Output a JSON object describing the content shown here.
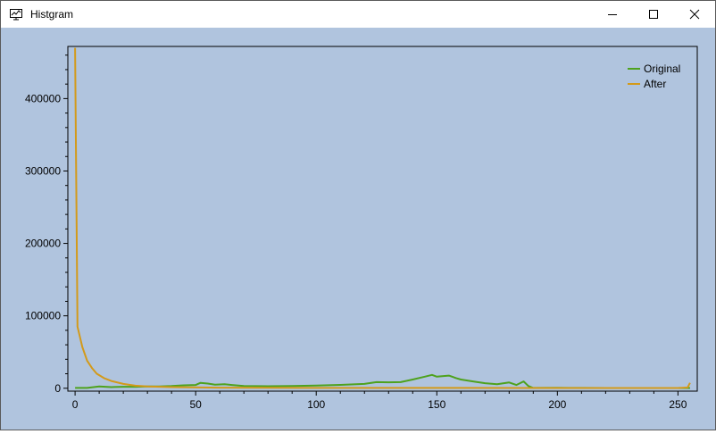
{
  "window": {
    "title": "Histgram",
    "icon": "chart-window-icon",
    "controls": [
      "minimize-icon",
      "maximize-icon",
      "close-icon"
    ]
  },
  "colors": {
    "background": "#b0c4de",
    "original": "#4ea21d",
    "after": "#d39a1a",
    "axis": "#000000"
  },
  "chart_data": {
    "type": "line",
    "title": "",
    "xlabel": "",
    "ylabel": "",
    "xlim": [
      -3,
      258
    ],
    "ylim": [
      -4000,
      472000
    ],
    "xticks": [
      0,
      50,
      100,
      150,
      200,
      250
    ],
    "yticks": [
      0,
      100000,
      200000,
      300000,
      400000
    ],
    "ytick_labels": [
      "0",
      "100000",
      "200000",
      "300000",
      "400000"
    ],
    "legend": {
      "position": "top-right",
      "entries": [
        "Original",
        "After"
      ]
    },
    "grid": false,
    "series": [
      {
        "name": "Original",
        "x": [
          0,
          5,
          10,
          15,
          20,
          25,
          30,
          35,
          40,
          45,
          50,
          52,
          55,
          58,
          62,
          65,
          70,
          80,
          90,
          100,
          110,
          120,
          125,
          130,
          135,
          140,
          145,
          148,
          150,
          155,
          158,
          160,
          165,
          170,
          175,
          180,
          183,
          186,
          188,
          190,
          200,
          210,
          220,
          230,
          240,
          250,
          255
        ],
        "y": [
          500,
          500,
          2500,
          1500,
          2000,
          2000,
          2500,
          2500,
          3000,
          4000,
          4500,
          7500,
          6500,
          5000,
          5500,
          4500,
          3000,
          2800,
          3200,
          3800,
          4600,
          6000,
          8500,
          8200,
          8500,
          12000,
          16000,
          18500,
          16000,
          17500,
          14000,
          12000,
          9500,
          7000,
          5500,
          8000,
          4500,
          9500,
          3000,
          500,
          600,
          400,
          300,
          300,
          300,
          300,
          300
        ]
      },
      {
        "name": "After",
        "x": [
          0,
          1,
          3,
          5,
          7,
          9,
          12,
          15,
          20,
          25,
          30,
          40,
          60,
          100,
          150,
          200,
          250,
          254,
          255
        ],
        "y": [
          470000,
          85000,
          57000,
          38000,
          28000,
          20000,
          14000,
          10000,
          6000,
          3500,
          2500,
          1500,
          800,
          500,
          400,
          300,
          300,
          1000,
          7500
        ]
      }
    ]
  }
}
